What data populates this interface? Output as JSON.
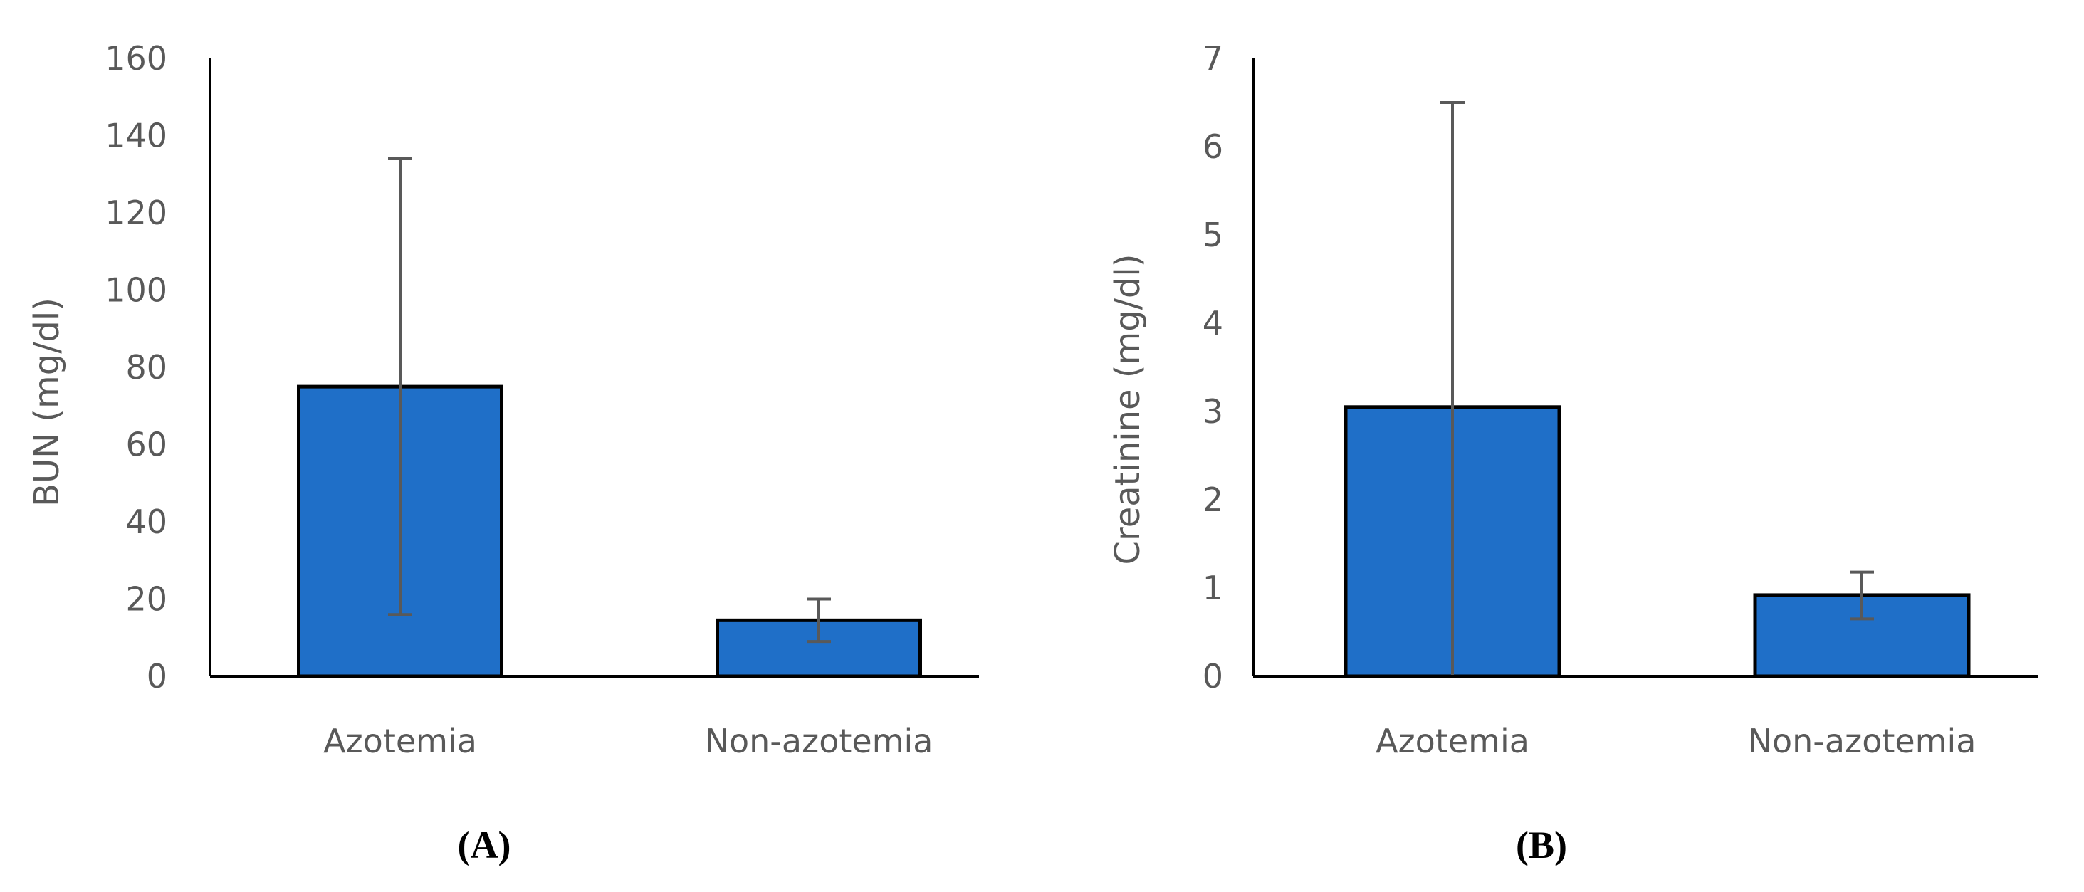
{
  "colors": {
    "bar_fill": "#1f6fc8",
    "bar_stroke": "#000000",
    "axis": "#000000",
    "error_bar": "#595959",
    "text": "#595959"
  },
  "chart_data": [
    {
      "type": "bar",
      "panel_label": "(A)",
      "title": "",
      "xlabel": "",
      "ylabel": "BUN (mg/dl)",
      "categories": [
        "Azotemia",
        "Non-azotemia"
      ],
      "values": [
        75,
        14.5
      ],
      "error_bars": [
        {
          "low": 16,
          "high": 134
        },
        {
          "low": 9,
          "high": 20
        }
      ],
      "ylim": [
        0,
        160
      ],
      "yticks": [
        0,
        20,
        40,
        60,
        80,
        100,
        120,
        140,
        160
      ],
      "grid": false,
      "legend": "none"
    },
    {
      "type": "bar",
      "panel_label": "(B)",
      "title": "",
      "xlabel": "",
      "ylabel": "Creatinine (mg/dl)",
      "categories": [
        "Azotemia",
        "Non-azotemia"
      ],
      "values": [
        3.05,
        0.92
      ],
      "error_bars": [
        {
          "low": 0,
          "high": 6.5
        },
        {
          "low": 0.65,
          "high": 1.18
        }
      ],
      "ylim": [
        0,
        7
      ],
      "yticks": [
        0,
        1,
        2,
        3,
        4,
        5,
        6,
        7
      ],
      "grid": false,
      "legend": "none"
    }
  ]
}
